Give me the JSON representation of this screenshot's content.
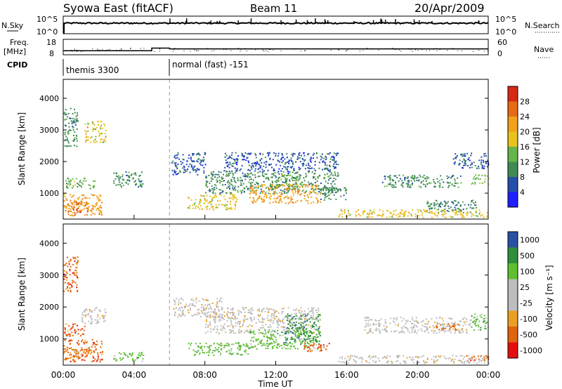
{
  "header": {
    "station": "Syowa East (fitACF)",
    "beam": "Beam 11",
    "date": "20/Apr/2009"
  },
  "top_panels": {
    "nsky_label": "N.Sky",
    "nsearch_label": "N.Search",
    "nsky_ticks": [
      "10^5",
      "10^0"
    ],
    "nsearch_ticks": [
      "10^5",
      "10^0"
    ],
    "freq_label_1": "Freq.",
    "freq_label_2": "[MHz]",
    "freq_ticks": [
      "18",
      "8"
    ],
    "nave_label": "Nave",
    "nave_ticks": [
      "60",
      "0"
    ],
    "cpid_label": "CPID",
    "cpid_segments": [
      {
        "name": "themis 3300",
        "start_hour": 0
      },
      {
        "name": "normal (fast) -151",
        "start_hour": 6
      }
    ],
    "freq_series": {
      "hours": [
        0,
        5,
        5,
        6,
        6,
        24
      ],
      "mhz": [
        10.6,
        10.6,
        12.3,
        12.3,
        11.8,
        11.8
      ]
    }
  },
  "colors": {
    "power_scale": [
      "#1e1eff",
      "#244fa8",
      "#3f8b52",
      "#66b54a",
      "#e8c21f",
      "#f2a11b",
      "#e66b14",
      "#d62a14"
    ],
    "velocity_scale": [
      "#e30f0f",
      "#e0640e",
      "#eb9f22",
      "#bdbdbd",
      "#bdbdbd",
      "#5fbf2f",
      "#2f8f3a",
      "#2a50a5"
    ],
    "ground_scatter": "#bdbdbd"
  },
  "chart_data": [
    {
      "type": "heatmap",
      "name": "power",
      "ylabel": "Slant Range [km]",
      "yticks": [
        "1000",
        "2000",
        "3000",
        "4000"
      ],
      "ylim": [
        180,
        4600
      ],
      "xlim": [
        0,
        24
      ],
      "colorbar_label": "Power [dB]",
      "colorbar_ticks": [
        "4",
        "8",
        "12",
        "16",
        "20",
        "24",
        "28"
      ],
      "colorbar_range": [
        0,
        32
      ],
      "cpid_change_hour": 6,
      "patches": [
        {
          "t": [
            0.0,
            2.2
          ],
          "r": [
            300,
            1000
          ],
          "v": 22
        },
        {
          "t": [
            0.2,
            1.4
          ],
          "r": [
            400,
            750
          ],
          "v": 26
        },
        {
          "t": [
            0.1,
            1.8
          ],
          "r": [
            1150,
            1500
          ],
          "v": 12
        },
        {
          "t": [
            0.0,
            0.8
          ],
          "r": [
            2500,
            3700
          ],
          "v": 8
        },
        {
          "t": [
            1.2,
            2.4
          ],
          "r": [
            2600,
            3300
          ],
          "v": 18
        },
        {
          "t": [
            2.8,
            4.5
          ],
          "r": [
            1200,
            1700
          ],
          "v": 8
        },
        {
          "t": [
            6.1,
            8.0
          ],
          "r": [
            1600,
            2300
          ],
          "v": 6
        },
        {
          "t": [
            7.0,
            9.8
          ],
          "r": [
            500,
            1000
          ],
          "v": 18
        },
        {
          "t": [
            8.0,
            15.5
          ],
          "r": [
            1000,
            1700
          ],
          "v": 10
        },
        {
          "t": [
            10.5,
            14.5
          ],
          "r": [
            700,
            1300
          ],
          "v": 20
        },
        {
          "t": [
            9.0,
            15.5
          ],
          "r": [
            1700,
            2300
          ],
          "v": 7
        },
        {
          "t": [
            12.0,
            13.5
          ],
          "r": [
            1200,
            1600
          ],
          "v": 14
        },
        {
          "t": [
            14.5,
            16.0
          ],
          "r": [
            800,
            1200
          ],
          "v": 8
        },
        {
          "t": [
            18.0,
            22.5
          ],
          "r": [
            1200,
            1600
          ],
          "v": 8
        },
        {
          "t": [
            20.5,
            23.5
          ],
          "r": [
            400,
            800
          ],
          "v": 10
        },
        {
          "t": [
            23.0,
            24.0
          ],
          "r": [
            1300,
            1600
          ],
          "v": 12
        },
        {
          "t": [
            15.5,
            24.0
          ],
          "r": [
            250,
            500
          ],
          "v": 16
        },
        {
          "t": [
            22.0,
            24.0
          ],
          "r": [
            1800,
            2300
          ],
          "v": 7
        }
      ]
    },
    {
      "type": "heatmap",
      "name": "velocity",
      "ylabel": "Slant Range [km]",
      "yticks": [
        "1000",
        "2000",
        "3000",
        "4000"
      ],
      "ylim": [
        180,
        4600
      ],
      "xlim": [
        0,
        24
      ],
      "colorbar_label": "Velocity [m s⁻¹]",
      "colorbar_ticks": [
        "-1000",
        "-500",
        "-100",
        "-25",
        "25",
        "100",
        "500",
        "1000"
      ],
      "cpid_change_hour": 6,
      "xticks": [
        "00:00",
        "04:00",
        "08:00",
        "12:00",
        "16:00",
        "20:00",
        "00:00"
      ],
      "xlabel": "Time UT",
      "patches": [
        {
          "t": [
            0.0,
            2.2
          ],
          "r": [
            300,
            1000
          ],
          "v": 1
        },
        {
          "t": [
            0.2,
            1.5
          ],
          "r": [
            400,
            700
          ],
          "v": 2
        },
        {
          "t": [
            0.0,
            1.2
          ],
          "r": [
            1100,
            1500
          ],
          "v": 1
        },
        {
          "t": [
            1.0,
            2.4
          ],
          "r": [
            1500,
            2000
          ],
          "v": 3
        },
        {
          "t": [
            0.0,
            0.8
          ],
          "r": [
            2500,
            3600
          ],
          "v": 1
        },
        {
          "t": [
            2.8,
            4.5
          ],
          "r": [
            300,
            600
          ],
          "v": 5
        },
        {
          "t": [
            6.2,
            9.0
          ],
          "r": [
            1700,
            2300
          ],
          "v": 3
        },
        {
          "t": [
            8.0,
            14.5
          ],
          "r": [
            1200,
            2000
          ],
          "v": 3
        },
        {
          "t": [
            7.0,
            10.5
          ],
          "r": [
            500,
            900
          ],
          "v": 5
        },
        {
          "t": [
            10.5,
            14.5
          ],
          "r": [
            700,
            1300
          ],
          "v": 5
        },
        {
          "t": [
            12.5,
            14.5
          ],
          "r": [
            900,
            1800
          ],
          "v": 6
        },
        {
          "t": [
            13.5,
            15.0
          ],
          "r": [
            600,
            900
          ],
          "v": 1
        },
        {
          "t": [
            17.0,
            23.0
          ],
          "r": [
            1200,
            1700
          ],
          "v": 3
        },
        {
          "t": [
            21.0,
            22.5
          ],
          "r": [
            1300,
            1500
          ],
          "v": 1
        },
        {
          "t": [
            15.5,
            24.0
          ],
          "r": [
            250,
            500
          ],
          "v": 3
        },
        {
          "t": [
            22.5,
            24.0
          ],
          "r": [
            350,
            500
          ],
          "v": 1
        },
        {
          "t": [
            23.0,
            24.0
          ],
          "r": [
            1300,
            1800
          ],
          "v": 5
        }
      ]
    }
  ]
}
